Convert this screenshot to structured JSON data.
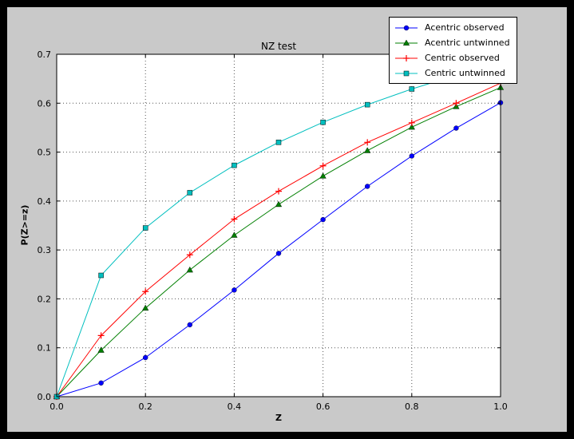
{
  "window": {
    "outer_background": "#000000",
    "figure_background": "#c9c9c9",
    "axes_background": "#ffffff"
  },
  "chart_data": {
    "type": "line",
    "title": "NZ test",
    "xlabel": "Z",
    "ylabel": "P(Z>=z)",
    "xlim": [
      0.0,
      1.0
    ],
    "ylim": [
      0.0,
      0.7
    ],
    "grid": true,
    "grid_style": "dotted",
    "legend_position": "upper right, overlapping top-right of axes",
    "xticks": {
      "values": [
        0.0,
        0.2,
        0.4,
        0.6,
        0.8,
        1.0
      ],
      "labels": [
        "0.0",
        "0.2",
        "0.4",
        "0.6",
        "0.8",
        "1.0"
      ]
    },
    "yticks": {
      "values": [
        0.0,
        0.1,
        0.2,
        0.3,
        0.4,
        0.5,
        0.6,
        0.7
      ],
      "labels": [
        "0.0",
        "0.1",
        "0.2",
        "0.3",
        "0.4",
        "0.5",
        "0.6",
        "0.7"
      ]
    },
    "x": [
      0.0,
      0.1,
      0.2,
      0.3,
      0.4,
      0.5,
      0.6,
      0.7,
      0.8,
      0.9,
      1.0
    ],
    "series": [
      {
        "name": "Acentric observed",
        "color": "#0000ff",
        "marker": "circle",
        "values": [
          0.0,
          0.028,
          0.08,
          0.147,
          0.218,
          0.293,
          0.362,
          0.43,
          0.492,
          0.549,
          0.601
        ]
      },
      {
        "name": "Acentric untwinned",
        "color": "#007f00",
        "marker": "triangle",
        "values": [
          0.0,
          0.095,
          0.181,
          0.259,
          0.33,
          0.393,
          0.451,
          0.503,
          0.551,
          0.593,
          0.632
        ]
      },
      {
        "name": "Centric observed",
        "color": "#ff0000",
        "marker": "plus",
        "values": [
          0.0,
          0.125,
          0.215,
          0.29,
          0.363,
          0.42,
          0.472,
          0.52,
          0.56,
          0.6,
          0.641
        ]
      },
      {
        "name": "Centric untwinned",
        "color": "#00bfbf",
        "marker": "square",
        "values": [
          0.0,
          0.248,
          0.345,
          0.417,
          0.473,
          0.52,
          0.561,
          0.597,
          0.629,
          0.657,
          0.683
        ]
      }
    ]
  }
}
